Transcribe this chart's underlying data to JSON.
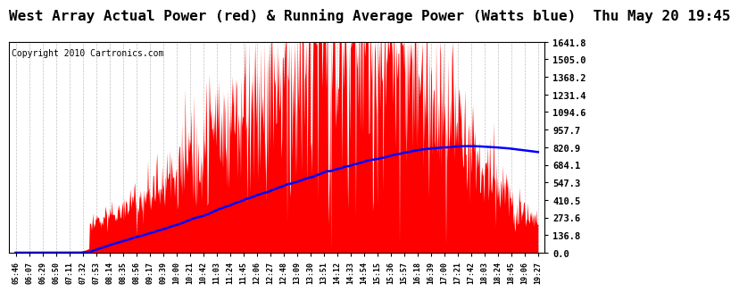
{
  "title": "West Array Actual Power (red) & Running Average Power (Watts blue)  Thu May 20 19:45",
  "copyright": "Copyright 2010 Cartronics.com",
  "ylabel_values": [
    0.0,
    136.8,
    273.6,
    410.5,
    547.3,
    684.1,
    820.9,
    957.7,
    1094.6,
    1231.4,
    1368.2,
    1505.0,
    1641.8
  ],
  "ymax": 1641.8,
  "bg_color": "#ffffff",
  "plot_bg_color": "#ffffff",
  "grid_color": "#bbbbbb",
  "bar_color": "#ff0000",
  "line_color": "#0000ff",
  "title_fontsize": 11.5,
  "copyright_fontsize": 7.0,
  "tick_fontsize": 7.5,
  "xtick_fontsize": 6.0
}
